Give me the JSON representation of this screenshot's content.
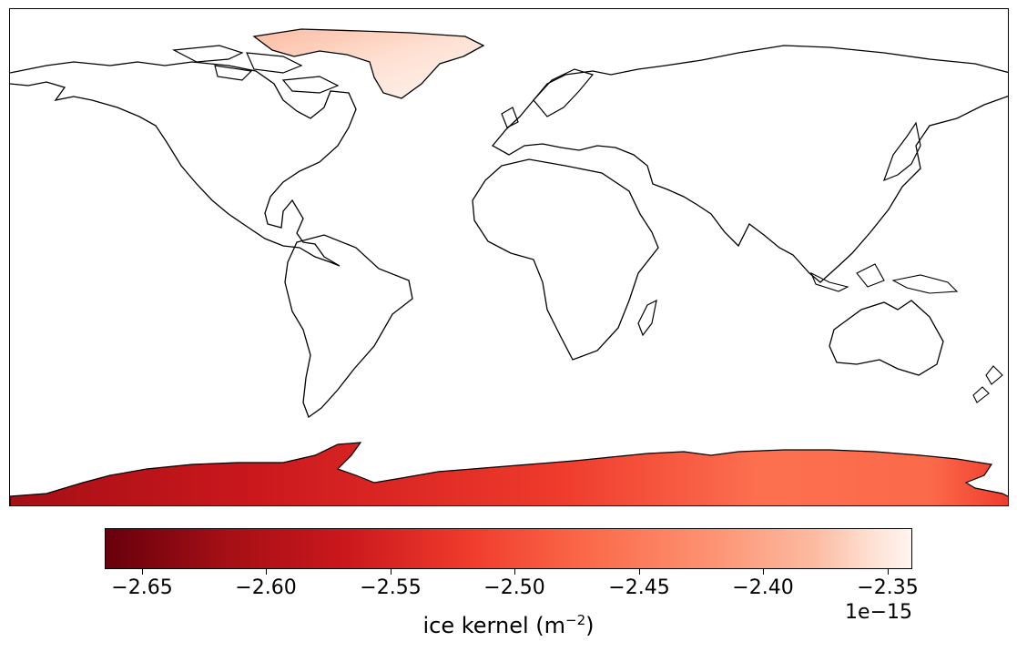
{
  "map": {
    "projection": "plate-carree",
    "coastlines": true,
    "colored_regions": [
      "Greenland",
      "Antarctica"
    ],
    "colormap": "Reds_r"
  },
  "colorbar": {
    "ticks": [
      "−2.65",
      "−2.60",
      "−2.55",
      "−2.50",
      "−2.45",
      "−2.40",
      "−2.35"
    ],
    "tick_values": [
      -2.65,
      -2.6,
      -2.55,
      -2.5,
      -2.45,
      -2.4,
      -2.35
    ],
    "vmin": -2.665,
    "vmax": -2.34,
    "offset_text": "1e−15",
    "label_prefix": "ice kernel (m",
    "label_exponent": "−2",
    "label_suffix": ")",
    "colors": {
      "dark": "#67000d",
      "mid": "#fb6a4a",
      "light": "#fff5f0"
    }
  }
}
